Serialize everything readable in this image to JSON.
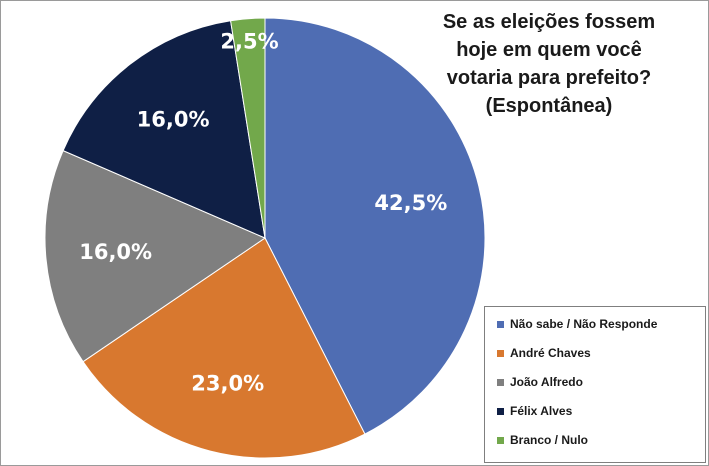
{
  "chart_data": {
    "type": "pie",
    "title_lines": [
      "Se as eleições fossem",
      "hoje em quem você",
      "votaria para prefeito?",
      "(Espontânea)"
    ],
    "slices": [
      {
        "name": "Não sabe / Não Responde",
        "value": 42.5,
        "label": "42,5%",
        "color": "#4f6db3"
      },
      {
        "name": "André Chaves",
        "value": 23.0,
        "label": "23,0%",
        "color": "#d8782f"
      },
      {
        "name": "João Alfredo",
        "value": 16.0,
        "label": "16,0%",
        "color": "#7f7f7f"
      },
      {
        "name": "Félix Alves",
        "value": 16.0,
        "label": "16,0%",
        "color": "#0f1f45"
      },
      {
        "name": "Branco / Nulo",
        "value": 2.5,
        "label": "2,5%",
        "color": "#72a84b"
      }
    ],
    "legend_position": "bottom-right",
    "start_angle": "12 o'clock",
    "direction": "clockwise"
  }
}
